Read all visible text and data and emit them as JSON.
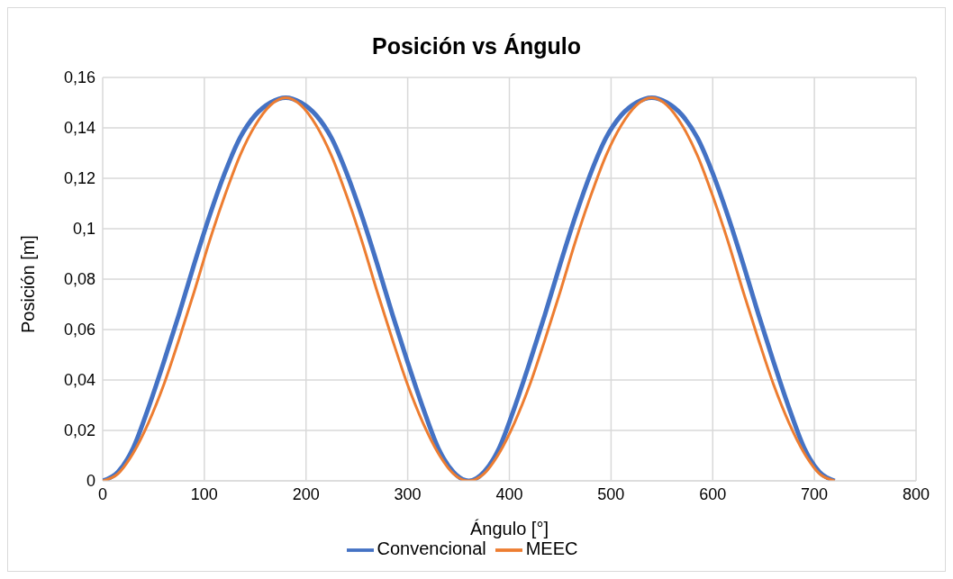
{
  "chart_data": {
    "type": "line",
    "title": "Posición vs Ángulo",
    "xlabel": "Ángulo [°]",
    "ylabel": "Posición [m]",
    "x": [
      0,
      15,
      30,
      45,
      60,
      75,
      90,
      105,
      120,
      135,
      150,
      165,
      180,
      195,
      210,
      225,
      240,
      255,
      270,
      285,
      300,
      315,
      330,
      345,
      360,
      375,
      390,
      405,
      420,
      435,
      450,
      465,
      480,
      495,
      510,
      525,
      540,
      555,
      570,
      585,
      600,
      615,
      630,
      645,
      660,
      675,
      690,
      705,
      720
    ],
    "series": [
      {
        "name": "Convencional",
        "color": "#4472c4",
        "values": [
          0,
          0.0035,
          0.013,
          0.029,
          0.047,
          0.066,
          0.086,
          0.105,
          0.122,
          0.136,
          0.145,
          0.15,
          0.152,
          0.15,
          0.145,
          0.136,
          0.122,
          0.105,
          0.086,
          0.066,
          0.047,
          0.029,
          0.013,
          0.0035,
          0,
          0.0035,
          0.013,
          0.029,
          0.047,
          0.066,
          0.086,
          0.105,
          0.122,
          0.136,
          0.145,
          0.15,
          0.152,
          0.15,
          0.145,
          0.136,
          0.122,
          0.105,
          0.086,
          0.066,
          0.047,
          0.029,
          0.013,
          0.0035,
          0
        ]
      },
      {
        "name": "MEEC",
        "color": "#ed7d31",
        "values": [
          0,
          0.0028,
          0.011,
          0.023,
          0.038,
          0.056,
          0.075,
          0.095,
          0.113,
          0.129,
          0.141,
          0.149,
          0.152,
          0.149,
          0.141,
          0.129,
          0.113,
          0.095,
          0.075,
          0.056,
          0.038,
          0.023,
          0.011,
          0.0028,
          0,
          0.0028,
          0.011,
          0.023,
          0.038,
          0.056,
          0.075,
          0.095,
          0.113,
          0.129,
          0.141,
          0.149,
          0.152,
          0.149,
          0.141,
          0.129,
          0.113,
          0.095,
          0.075,
          0.056,
          0.038,
          0.023,
          0.011,
          0.0028,
          0
        ]
      }
    ],
    "xlim": [
      0,
      800
    ],
    "xticks": [
      0,
      100,
      200,
      300,
      400,
      500,
      600,
      700,
      800
    ],
    "ylim": [
      0,
      0.16
    ],
    "yticks": [
      0,
      {
        "value": 0.02,
        "label": "0,02"
      },
      {
        "value": 0.04,
        "label": "0,04"
      },
      {
        "value": 0.06,
        "label": "0,06"
      },
      {
        "value": 0.08,
        "label": "0,08"
      },
      {
        "value": 0.1,
        "label": "0,1"
      },
      {
        "value": 0.12,
        "label": "0,12"
      },
      {
        "value": 0.14,
        "label": "0,14"
      },
      {
        "value": 0.16,
        "label": "0,16"
      }
    ],
    "grid": true,
    "legend": "bottom",
    "marker": "none"
  }
}
